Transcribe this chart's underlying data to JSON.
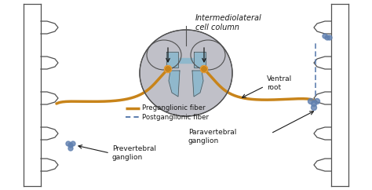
{
  "bg_color": "#ffffff",
  "gray_color": "#c0c0c8",
  "blue_color": "#90b8cc",
  "pre_color": "#c8841a",
  "post_color": "#6080b0",
  "outline_color": "#505050",
  "black": "#1a1a1a",
  "labels": {
    "intermediolateral": "Intermediolateral\ncell column",
    "preganglionic": "Preganglionic fiber",
    "postganglionic": "Postganglionic fiber",
    "ventral_root": "Ventral\nroot",
    "prevertebral": "Prevertebral\nganglion",
    "paravertebral": "Paravertebral\nganglion"
  }
}
